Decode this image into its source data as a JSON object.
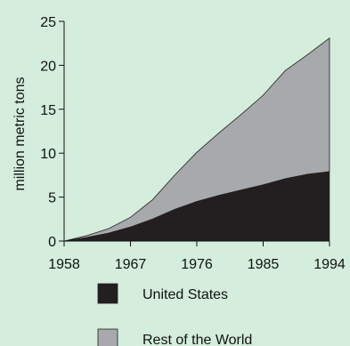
{
  "chart_data": {
    "type": "area",
    "title": "",
    "xlabel": "",
    "ylabel": "million metric tons",
    "stacked": true,
    "grid": false,
    "legend_position": "bottom",
    "xlim": [
      1958,
      1994
    ],
    "ylim": [
      0,
      25
    ],
    "xticks": [
      "1958",
      "1967",
      "1976",
      "1985",
      "1994"
    ],
    "yticks": [
      "0",
      "5",
      "10",
      "15",
      "20",
      "25"
    ],
    "x": [
      1958,
      1961,
      1964,
      1967,
      1970,
      1973,
      1976,
      1979,
      1982,
      1985,
      1988,
      1991,
      1994
    ],
    "series": [
      {
        "name": "United States",
        "color": "#231f20",
        "values": [
          0,
          0.4,
          0.9,
          1.6,
          2.5,
          3.6,
          4.5,
          5.2,
          5.8,
          6.4,
          7.1,
          7.6,
          7.9
        ]
      },
      {
        "name": "Rest of the World",
        "color": "#a7a9ac",
        "values": [
          0,
          0.2,
          0.5,
          1.1,
          2.2,
          3.9,
          5.6,
          7.1,
          8.6,
          10.2,
          12.3,
          13.6,
          15.2
        ]
      }
    ]
  }
}
